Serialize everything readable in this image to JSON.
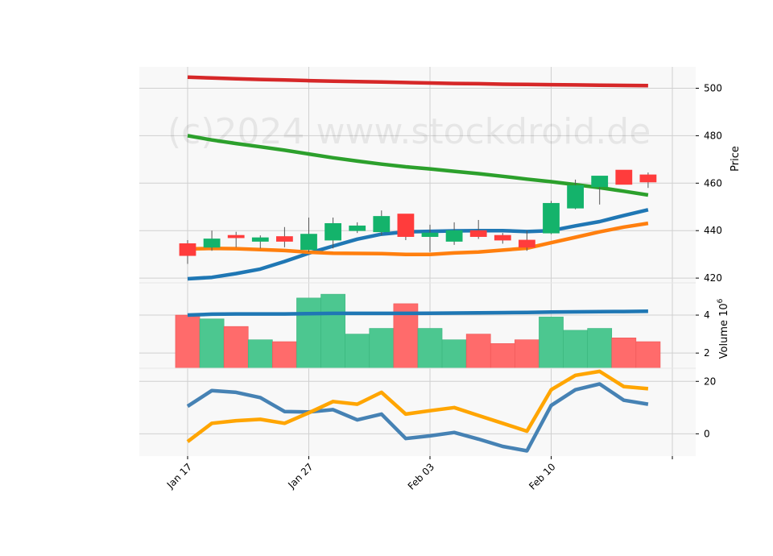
{
  "watermark": "(c)2024 www.stockdroid.de",
  "colors": {
    "up": "#14b36b",
    "down": "#ff3c3c",
    "vol_up": "#4cc790",
    "vol_down": "#ff6b6b",
    "sma20": "#1f77b4",
    "sma10": "#ff7f0e",
    "sma100": "#2ca02c",
    "sma200": "#d62728",
    "macd": "#4682b4",
    "signal": "#ffa500",
    "grid": "#d0d0d0",
    "panel_bg": "#f8f8f8"
  },
  "chart_data": {
    "type": "candlestick",
    "x_labels": [
      {
        "index": 0,
        "label": "Jan 17"
      },
      {
        "index": 5,
        "label": "Jan 27"
      },
      {
        "index": 10,
        "label": "Feb 03"
      },
      {
        "index": 15,
        "label": "Feb 10"
      },
      {
        "index": 20,
        "label": ""
      }
    ],
    "price": {
      "ylabel": "Price",
      "ylim": [
        418,
        509
      ],
      "yticks": [
        420,
        440,
        460,
        480,
        500
      ],
      "candles": [
        {
          "o": 434.5,
          "h": 436.0,
          "l": 426.0,
          "c": 429.5
        },
        {
          "o": 433.0,
          "h": 440.0,
          "l": 431.5,
          "c": 436.5
        },
        {
          "o": 438.0,
          "h": 439.5,
          "l": 433.0,
          "c": 437.0
        },
        {
          "o": 435.5,
          "h": 438.0,
          "l": 432.5,
          "c": 437.0
        },
        {
          "o": 437.5,
          "h": 441.5,
          "l": 433.0,
          "c": 435.5
        },
        {
          "o": 432.0,
          "h": 445.5,
          "l": 431.0,
          "c": 438.5
        },
        {
          "o": 436.0,
          "h": 445.5,
          "l": 432.5,
          "c": 443.0
        },
        {
          "o": 440.0,
          "h": 443.5,
          "l": 439.0,
          "c": 442.0
        },
        {
          "o": 439.5,
          "h": 448.5,
          "l": 438.0,
          "c": 446.0
        },
        {
          "o": 447.0,
          "h": 447.0,
          "l": 436.0,
          "c": 437.5
        },
        {
          "o": 437.5,
          "h": 442.5,
          "l": 431.0,
          "c": 439.0
        },
        {
          "o": 435.5,
          "h": 443.5,
          "l": 434.0,
          "c": 440.0
        },
        {
          "o": 440.0,
          "h": 444.5,
          "l": 436.5,
          "c": 437.5
        },
        {
          "o": 438.0,
          "h": 439.0,
          "l": 434.5,
          "c": 436.0
        },
        {
          "o": 436.0,
          "h": 440.0,
          "l": 431.5,
          "c": 433.0
        },
        {
          "o": 439.0,
          "h": 452.5,
          "l": 438.5,
          "c": 451.5
        },
        {
          "o": 449.5,
          "h": 461.5,
          "l": 449.0,
          "c": 459.0
        },
        {
          "o": 458.5,
          "h": 462.5,
          "l": 451.0,
          "c": 463.0
        },
        {
          "o": 465.5,
          "h": 465.5,
          "l": 459.5,
          "c": 459.5
        },
        {
          "o": 463.5,
          "h": 464.5,
          "l": 458.0,
          "c": 460.5
        }
      ],
      "series": [
        {
          "key": "sma200",
          "values": [
            504.7,
            504.3,
            504.0,
            503.7,
            503.5,
            503.2,
            503.0,
            502.8,
            502.6,
            502.4,
            502.2,
            502.0,
            501.9,
            501.7,
            501.6,
            501.5,
            501.4,
            501.3,
            501.2,
            501.1
          ]
        },
        {
          "key": "sma100",
          "values": [
            480.0,
            478.2,
            476.7,
            475.3,
            473.9,
            472.3,
            470.7,
            469.3,
            468.0,
            466.9,
            466.0,
            465.0,
            464.0,
            462.9,
            461.7,
            460.6,
            459.4,
            458.1,
            456.6,
            455.0
          ]
        },
        {
          "key": "sma20",
          "values": [
            419.7,
            420.3,
            421.9,
            423.8,
            427.0,
            430.5,
            433.5,
            436.4,
            438.5,
            439.5,
            439.7,
            439.9,
            440.0,
            440.0,
            439.6,
            440.0,
            442.0,
            443.8,
            446.4,
            448.8
          ]
        },
        {
          "key": "sma10",
          "values": [
            432.3,
            432.5,
            432.4,
            432.0,
            431.6,
            430.9,
            430.5,
            430.4,
            430.3,
            430.0,
            430.0,
            430.6,
            431.0,
            431.8,
            432.6,
            434.9,
            437.2,
            439.5,
            441.5,
            443.1
          ]
        }
      ]
    },
    "volume": {
      "ylabel": "Volume  10^6",
      "ylim": [
        1.2,
        5.7
      ],
      "yticks": [
        2,
        4
      ],
      "values": [
        4.0,
        3.8,
        3.4,
        2.7,
        2.6,
        4.9,
        5.1,
        3.0,
        3.3,
        4.6,
        3.3,
        2.7,
        3.0,
        2.5,
        2.7,
        3.9,
        3.2,
        3.3,
        2.8,
        2.6
      ],
      "series": [
        {
          "key": "sma20",
          "values": [
            4.0,
            4.05,
            4.06,
            4.06,
            4.06,
            4.08,
            4.09,
            4.09,
            4.09,
            4.09,
            4.1,
            4.11,
            4.12,
            4.13,
            4.14,
            4.16,
            4.17,
            4.18,
            4.19,
            4.2
          ]
        }
      ]
    },
    "macd": {
      "ylim": [
        -8.5,
        25
      ],
      "yticks": [
        0,
        20
      ],
      "series": [
        {
          "key": "macd",
          "values": [
            10.5,
            16.5,
            15.8,
            13.8,
            8.5,
            8.3,
            9.2,
            5.3,
            7.5,
            -1.8,
            -0.8,
            0.5,
            -2.0,
            -4.8,
            -6.5,
            10.8,
            16.8,
            19.0,
            12.8,
            11.3
          ]
        },
        {
          "key": "signal",
          "values": [
            -3.0,
            4.0,
            5.0,
            5.5,
            4.0,
            8.0,
            12.3,
            11.3,
            15.8,
            7.5,
            8.8,
            10.0,
            7.0,
            4.0,
            1.0,
            16.8,
            22.3,
            23.8,
            18.0,
            17.2
          ]
        }
      ]
    }
  }
}
